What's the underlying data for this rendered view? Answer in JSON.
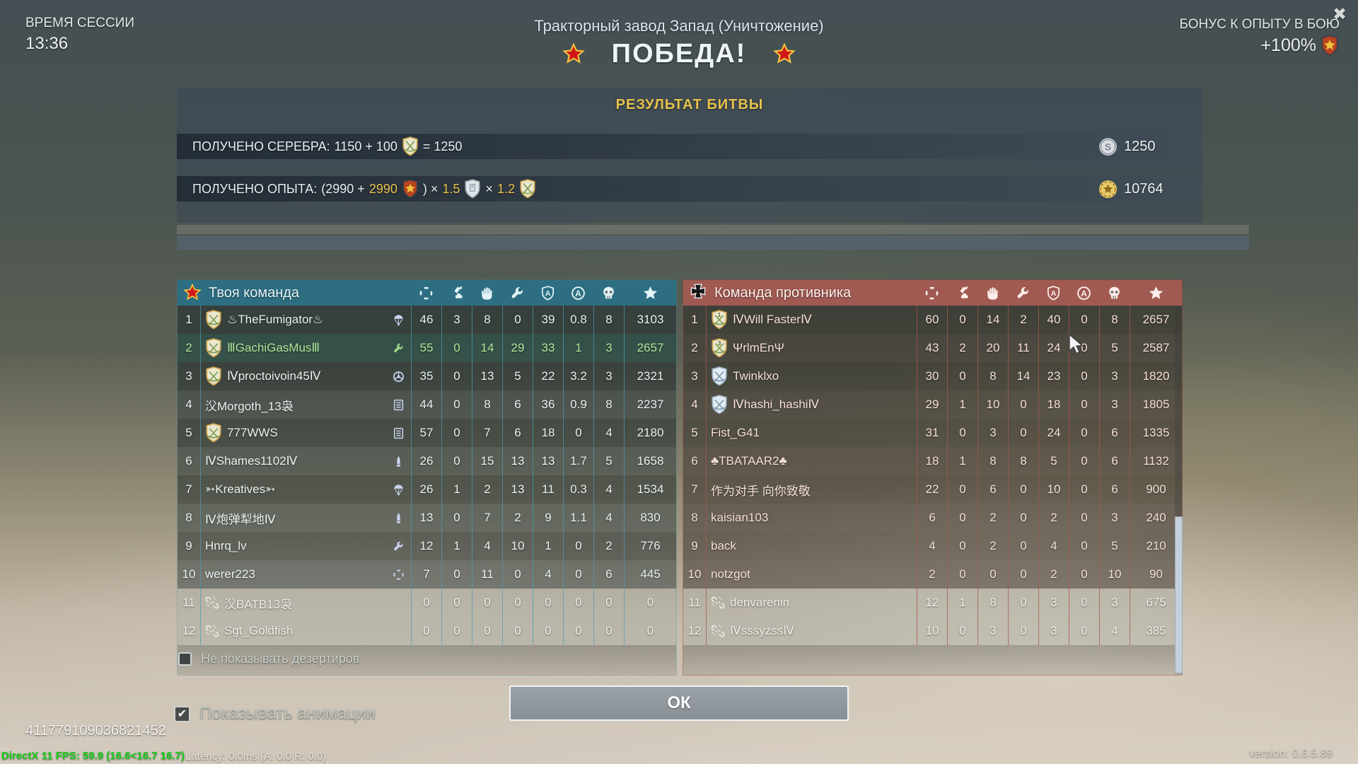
{
  "session": {
    "label": "ВРЕМЯ СЕССИИ",
    "time": "13:36"
  },
  "header": {
    "map": "Тракторный завод Запад (Уничтожение)",
    "result": "ПОБЕДА!"
  },
  "bonus": {
    "label": "БОНУС К ОПЫТУ В БОЮ",
    "value": "+100%"
  },
  "close_glyph": "✖",
  "results": {
    "title": "РЕЗУЛЬТАТ БИТВЫ",
    "silver_label": "ПОЛУЧЕНО СЕРЕБРА:",
    "silver_parts": [
      {
        "t": "1150 + 100",
        "c": "w"
      },
      {
        "icon": "shield-tan"
      },
      {
        "t": "= 1250",
        "c": "w"
      }
    ],
    "silver_total": "1250",
    "xp_label": "ПОЛУЧЕНО ОПЫТА:",
    "xp_parts": [
      {
        "t": "(2990 +",
        "c": "w"
      },
      {
        "t": "2990",
        "c": "y"
      },
      {
        "icon": "shield-premium"
      },
      {
        "t": ")  ×",
        "c": "w"
      },
      {
        "t": "1.5",
        "c": "y"
      },
      {
        "icon": "shield-silver"
      },
      {
        "t": "×",
        "c": "w"
      },
      {
        "t": "1.2",
        "c": "y"
      },
      {
        "icon": "shield-green"
      }
    ],
    "xp_total": "10764"
  },
  "tables": {
    "columns": [
      {
        "id": "damage",
        "icon": "crosshair"
      },
      {
        "id": "airstrike",
        "icon": "airstrike"
      },
      {
        "id": "assists",
        "icon": "hand"
      },
      {
        "id": "repairs",
        "icon": "wrench"
      },
      {
        "id": "armor-a",
        "icon": "shield-a"
      },
      {
        "id": "accuracy-a",
        "icon": "circle-a"
      },
      {
        "id": "kills",
        "icon": "skull"
      },
      {
        "id": "score",
        "icon": "star"
      }
    ],
    "your_team": {
      "title": "Твоя команда",
      "rows": [
        {
          "rank": "1",
          "clan": "green",
          "name": "♨TheFumigator♨",
          "medal": "parachute",
          "values": [
            "46",
            "3",
            "8",
            "0",
            "39",
            "0.8",
            "8",
            "3103"
          ]
        },
        {
          "rank": "2",
          "clan": "green",
          "name": "ⅢGachiGasMusⅢ",
          "medal": "wrench",
          "values": [
            "55",
            "0",
            "14",
            "29",
            "33",
            "1",
            "3",
            "2657"
          ],
          "state": "self"
        },
        {
          "rank": "3",
          "clan": "green",
          "name": "Ⅳproctoivoin45Ⅳ",
          "medal": "wheel",
          "values": [
            "35",
            "0",
            "13",
            "5",
            "22",
            "3.2",
            "3",
            "2321"
          ]
        },
        {
          "rank": "4",
          "clan": "",
          "name": "㳇Morgoth_13袅",
          "medal": "list",
          "values": [
            "44",
            "0",
            "8",
            "6",
            "36",
            "0.9",
            "8",
            "2237"
          ]
        },
        {
          "rank": "5",
          "clan": "green",
          "name": "777WWS",
          "medal": "list",
          "values": [
            "57",
            "0",
            "7",
            "6",
            "18",
            "0",
            "4",
            "2180"
          ]
        },
        {
          "rank": "6",
          "clan": "",
          "name": "ⅣShames1102Ⅳ",
          "medal": "shell",
          "values": [
            "26",
            "0",
            "15",
            "13",
            "13",
            "1.7",
            "5",
            "1658"
          ]
        },
        {
          "rank": "7",
          "clan": "",
          "name": "➳Kreatives➳",
          "medal": "parachute",
          "values": [
            "26",
            "1",
            "2",
            "13",
            "11",
            "0.3",
            "4",
            "1534"
          ]
        },
        {
          "rank": "8",
          "clan": "",
          "name": "Ⅳ炮弹犁地Ⅳ",
          "medal": "shell",
          "values": [
            "13",
            "0",
            "7",
            "2",
            "9",
            "1.1",
            "4",
            "830"
          ]
        },
        {
          "rank": "9",
          "clan": "",
          "name": "Hnrq_lv",
          "medal": "wrench",
          "values": [
            "12",
            "1",
            "4",
            "10",
            "1",
            "0",
            "2",
            "776"
          ]
        },
        {
          "rank": "10",
          "clan": "",
          "name": "werer223",
          "medal": "crosshair",
          "values": [
            "7",
            "0",
            "11",
            "0",
            "4",
            "0",
            "6",
            "445"
          ]
        },
        {
          "rank": "11",
          "clan": "broken",
          "name": "㳇BATB13袅",
          "medal": "",
          "values": [
            "0",
            "0",
            "0",
            "0",
            "0",
            "0",
            "0",
            "0"
          ],
          "state": "deserter"
        },
        {
          "rank": "12",
          "clan": "broken",
          "name": "Sgt_Goldfish",
          "medal": "",
          "values": [
            "0",
            "0",
            "0",
            "0",
            "0",
            "0",
            "0",
            "0"
          ],
          "state": "deserter"
        }
      ]
    },
    "enemy_team": {
      "title": "Команда противника",
      "rows": [
        {
          "rank": "1",
          "clan": "green-1",
          "name": "ⅣWill FasterⅣ",
          "medal": "",
          "values": [
            "60",
            "0",
            "14",
            "2",
            "40",
            "0",
            "8",
            "2657"
          ]
        },
        {
          "rank": "2",
          "clan": "green-3",
          "name": "ΨrlmEnΨ",
          "medal": "",
          "values": [
            "43",
            "2",
            "20",
            "11",
            "24",
            "0",
            "5",
            "2587"
          ]
        },
        {
          "rank": "3",
          "clan": "blue",
          "name": "Twinklxo",
          "medal": "",
          "values": [
            "30",
            "0",
            "8",
            "14",
            "23",
            "0",
            "3",
            "1820"
          ]
        },
        {
          "rank": "4",
          "clan": "blue",
          "name": "Ⅳhashi_hashiⅣ",
          "medal": "",
          "values": [
            "29",
            "1",
            "10",
            "0",
            "18",
            "0",
            "3",
            "1805"
          ]
        },
        {
          "rank": "5",
          "clan": "",
          "name": "Fist_G41",
          "medal": "",
          "values": [
            "31",
            "0",
            "3",
            "0",
            "24",
            "0",
            "6",
            "1335"
          ]
        },
        {
          "rank": "6",
          "clan": "",
          "name": "♣TBATAAR2♣",
          "medal": "",
          "values": [
            "18",
            "1",
            "8",
            "8",
            "5",
            "0",
            "6",
            "1132"
          ]
        },
        {
          "rank": "7",
          "clan": "",
          "name": "作为对手 向你致敬",
          "medal": "",
          "values": [
            "22",
            "0",
            "6",
            "0",
            "10",
            "0",
            "6",
            "900"
          ]
        },
        {
          "rank": "8",
          "clan": "",
          "name": "kaisian103",
          "medal": "",
          "values": [
            "6",
            "0",
            "2",
            "0",
            "2",
            "0",
            "3",
            "240"
          ]
        },
        {
          "rank": "9",
          "clan": "",
          "name": "back",
          "medal": "",
          "values": [
            "4",
            "0",
            "2",
            "0",
            "4",
            "0",
            "5",
            "210"
          ]
        },
        {
          "rank": "10",
          "clan": "",
          "name": "notzgot",
          "medal": "",
          "values": [
            "2",
            "0",
            "0",
            "0",
            "2",
            "0",
            "10",
            "90"
          ]
        },
        {
          "rank": "11",
          "clan": "broken",
          "name": "denvarenin",
          "medal": "",
          "values": [
            "12",
            "1",
            "8",
            "0",
            "3",
            "0",
            "3",
            "675"
          ],
          "state": "deserter"
        },
        {
          "rank": "12",
          "clan": "broken",
          "name": "ⅣsssyzssⅣ",
          "medal": "",
          "values": [
            "10",
            "0",
            "3",
            "0",
            "3",
            "0",
            "4",
            "385"
          ],
          "state": "deserter"
        }
      ]
    }
  },
  "footer": {
    "checkbox_deserters": "Не показывать дезертиров",
    "deserters_checked": false,
    "checkbox_animations": "Показывать анимации",
    "animations_checked": true,
    "check_glyph": "✔",
    "ok": "ОК"
  },
  "debug": {
    "id": "411779109036821452",
    "fps": "DirectX 11 FPS: 59.9 (16.6<16.7 16.7)",
    "latency": "Latency:  0.0ms (A:  0.0 R:  0.0)",
    "version": "version: 0.6.5.89"
  }
}
